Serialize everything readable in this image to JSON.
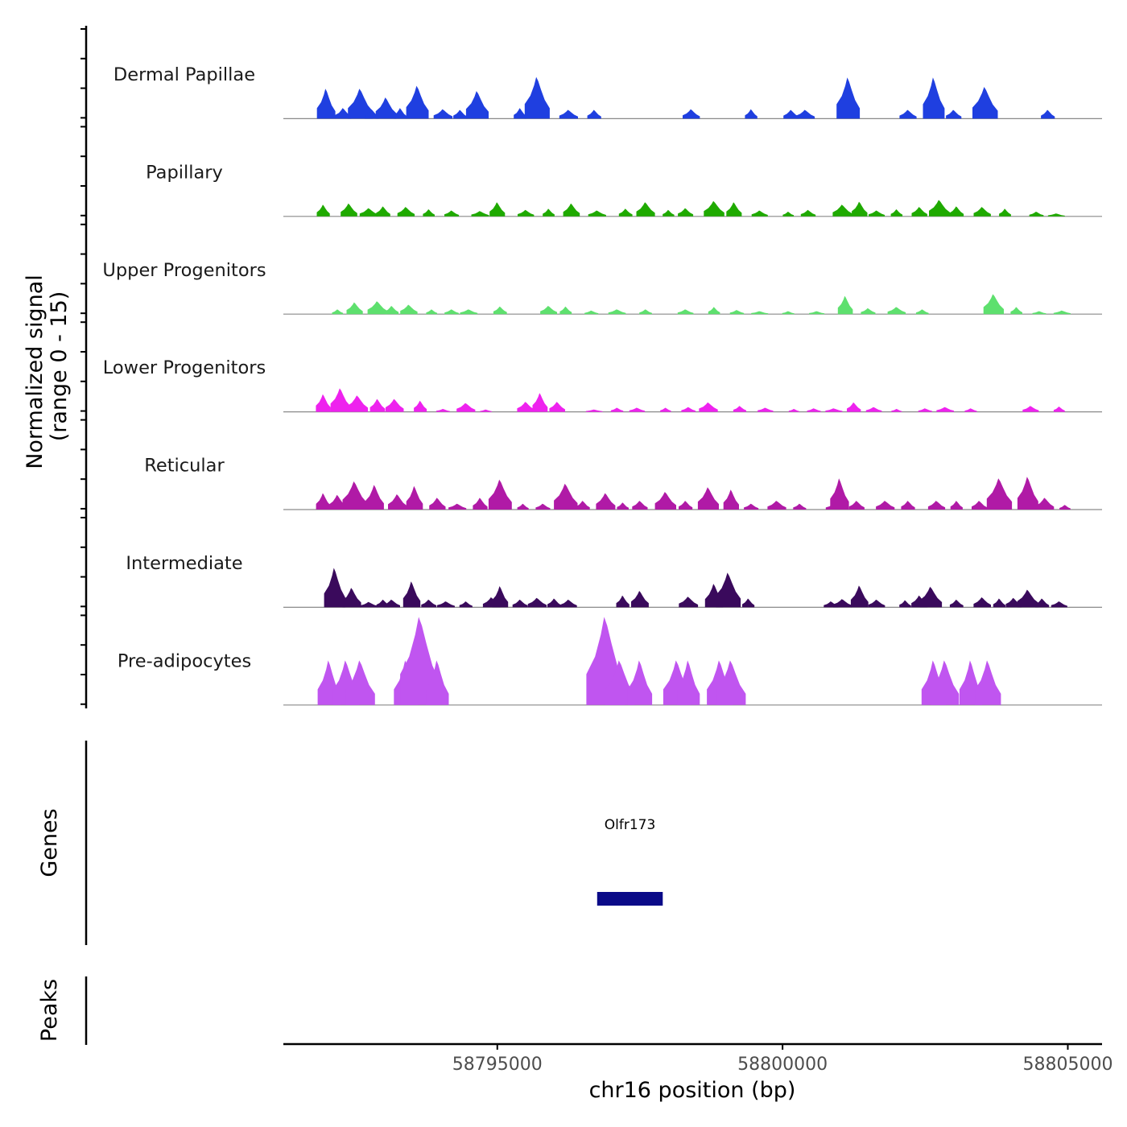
{
  "chart_data": {
    "type": "area",
    "chromosome": "chr16",
    "xlim": [
      58791250,
      58805600
    ],
    "y_range": [
      0,
      15
    ],
    "xlabel": "chr16 position (bp)",
    "ylabel_line1": "Normalized signal",
    "ylabel_line2": "(range 0 - 15)",
    "x_ticks": [
      58795000,
      58800000,
      58805000
    ],
    "x_tick_labels": [
      "58795000",
      "58800000",
      "58805000"
    ],
    "tracks": [
      {
        "name": "Dermal Papillae",
        "color": "#1f3fe0",
        "peaks": [
          [
            58792000,
            5.1
          ],
          [
            58792300,
            1.8
          ],
          [
            58792600,
            5.1
          ],
          [
            58792800,
            1.6
          ],
          [
            58793050,
            3.6
          ],
          [
            58793300,
            1.8
          ],
          [
            58793600,
            5.6
          ],
          [
            58794050,
            1.6
          ],
          [
            58794350,
            1.5
          ],
          [
            58794650,
            4.7
          ],
          [
            58795400,
            1.8
          ],
          [
            58795700,
            7.1
          ],
          [
            58796250,
            1.5
          ],
          [
            58796700,
            1.5
          ],
          [
            58798400,
            1.6
          ],
          [
            58799450,
            1.6
          ],
          [
            58800150,
            1.5
          ],
          [
            58800400,
            1.5
          ],
          [
            58801150,
            7.0
          ],
          [
            58802200,
            1.5
          ],
          [
            58802650,
            7.0
          ],
          [
            58803000,
            1.5
          ],
          [
            58803550,
            5.4
          ],
          [
            58804650,
            1.5
          ]
        ]
      },
      {
        "name": "Papillary",
        "color": "#1faa00",
        "peaks": [
          [
            58791950,
            2.0
          ],
          [
            58792400,
            2.2
          ],
          [
            58792750,
            1.4
          ],
          [
            58793000,
            1.7
          ],
          [
            58793400,
            1.6
          ],
          [
            58793800,
            1.2
          ],
          [
            58794200,
            1.0
          ],
          [
            58794700,
            0.9
          ],
          [
            58795000,
            2.4
          ],
          [
            58795500,
            1.1
          ],
          [
            58795900,
            1.3
          ],
          [
            58796300,
            2.2
          ],
          [
            58796750,
            1.0
          ],
          [
            58797250,
            1.3
          ],
          [
            58797600,
            2.4
          ],
          [
            58798000,
            1.1
          ],
          [
            58798300,
            1.4
          ],
          [
            58798800,
            2.6
          ],
          [
            58799150,
            2.4
          ],
          [
            58799600,
            1.0
          ],
          [
            58800100,
            0.8
          ],
          [
            58800450,
            1.1
          ],
          [
            58801050,
            2.0
          ],
          [
            58801350,
            2.5
          ],
          [
            58801650,
            1.0
          ],
          [
            58802000,
            1.2
          ],
          [
            58802400,
            1.6
          ],
          [
            58802750,
            2.8
          ],
          [
            58803050,
            1.7
          ],
          [
            58803500,
            1.6
          ],
          [
            58803900,
            1.3
          ],
          [
            58804450,
            0.8
          ],
          [
            58804800,
            0.5
          ]
        ]
      },
      {
        "name": "Upper Progenitors",
        "color": "#5ee06e",
        "peaks": [
          [
            58792200,
            0.8
          ],
          [
            58792500,
            2.0
          ],
          [
            58792900,
            2.2
          ],
          [
            58793150,
            1.4
          ],
          [
            58793450,
            1.6
          ],
          [
            58793850,
            0.8
          ],
          [
            58794200,
            0.8
          ],
          [
            58794500,
            0.8
          ],
          [
            58795050,
            1.3
          ],
          [
            58795900,
            1.4
          ],
          [
            58796200,
            1.3
          ],
          [
            58796650,
            0.6
          ],
          [
            58797100,
            0.8
          ],
          [
            58797600,
            0.8
          ],
          [
            58798300,
            0.8
          ],
          [
            58798800,
            1.2
          ],
          [
            58799200,
            0.7
          ],
          [
            58799600,
            0.5
          ],
          [
            58800100,
            0.5
          ],
          [
            58800600,
            0.5
          ],
          [
            58801100,
            3.1
          ],
          [
            58801500,
            1.0
          ],
          [
            58802000,
            1.2
          ],
          [
            58802450,
            0.8
          ],
          [
            58803700,
            3.4
          ],
          [
            58804100,
            1.2
          ],
          [
            58804500,
            0.5
          ],
          [
            58804900,
            0.6
          ]
        ]
      },
      {
        "name": "Lower Progenitors",
        "color": "#ee22ee",
        "peaks": [
          [
            58791950,
            3.0
          ],
          [
            58792250,
            4.0
          ],
          [
            58792550,
            2.8
          ],
          [
            58792900,
            2.2
          ],
          [
            58793200,
            2.2
          ],
          [
            58793650,
            1.9
          ],
          [
            58794050,
            0.5
          ],
          [
            58794450,
            1.5
          ],
          [
            58794800,
            0.4
          ],
          [
            58795500,
            1.7
          ],
          [
            58795750,
            3.2
          ],
          [
            58796050,
            1.7
          ],
          [
            58796700,
            0.4
          ],
          [
            58797100,
            0.7
          ],
          [
            58797450,
            0.7
          ],
          [
            58797950,
            0.7
          ],
          [
            58798350,
            0.8
          ],
          [
            58798700,
            1.6
          ],
          [
            58799250,
            1.0
          ],
          [
            58799700,
            0.7
          ],
          [
            58800200,
            0.5
          ],
          [
            58800550,
            0.6
          ],
          [
            58800900,
            0.6
          ],
          [
            58801250,
            1.6
          ],
          [
            58801600,
            0.8
          ],
          [
            58802000,
            0.5
          ],
          [
            58802500,
            0.6
          ],
          [
            58802850,
            0.8
          ],
          [
            58803300,
            0.6
          ],
          [
            58804350,
            1.0
          ],
          [
            58804850,
            0.9
          ]
        ]
      },
      {
        "name": "Reticular",
        "color": "#b01aa6",
        "peaks": [
          [
            58791950,
            2.8
          ],
          [
            58792200,
            2.5
          ],
          [
            58792500,
            4.8
          ],
          [
            58792850,
            4.2
          ],
          [
            58793250,
            2.6
          ],
          [
            58793550,
            4.0
          ],
          [
            58793950,
            2.0
          ],
          [
            58794300,
            1.0
          ],
          [
            58794700,
            2.0
          ],
          [
            58795050,
            5.1
          ],
          [
            58795450,
            1.0
          ],
          [
            58795800,
            1.0
          ],
          [
            58796200,
            4.4
          ],
          [
            58796500,
            1.5
          ],
          [
            58796900,
            2.8
          ],
          [
            58797200,
            1.2
          ],
          [
            58797500,
            1.5
          ],
          [
            58797950,
            3.0
          ],
          [
            58798300,
            1.5
          ],
          [
            58798700,
            3.8
          ],
          [
            58799100,
            3.4
          ],
          [
            58799450,
            1.0
          ],
          [
            58799900,
            1.5
          ],
          [
            58800300,
            1.0
          ],
          [
            58800900,
            1.0
          ],
          [
            58801000,
            5.3
          ],
          [
            58801300,
            1.5
          ],
          [
            58801800,
            1.5
          ],
          [
            58802200,
            1.5
          ],
          [
            58802700,
            1.5
          ],
          [
            58803050,
            1.5
          ],
          [
            58803450,
            1.5
          ],
          [
            58803800,
            5.3
          ],
          [
            58804300,
            5.6
          ],
          [
            58804600,
            2.0
          ],
          [
            58804950,
            0.8
          ]
        ]
      },
      {
        "name": "Intermediate",
        "color": "#3a0a5c",
        "peaks": [
          [
            58792150,
            6.7
          ],
          [
            58792450,
            3.3
          ],
          [
            58792750,
            0.9
          ],
          [
            58793000,
            1.3
          ],
          [
            58793150,
            1.3
          ],
          [
            58793500,
            4.4
          ],
          [
            58793800,
            1.3
          ],
          [
            58794100,
            1.0
          ],
          [
            58794450,
            1.0
          ],
          [
            58794900,
            1.7
          ],
          [
            58795050,
            3.6
          ],
          [
            58795400,
            1.3
          ],
          [
            58795700,
            1.6
          ],
          [
            58796000,
            1.5
          ],
          [
            58796250,
            1.3
          ],
          [
            58797200,
            2.0
          ],
          [
            58797500,
            2.8
          ],
          [
            58798350,
            1.8
          ],
          [
            58798800,
            4.0
          ],
          [
            58799050,
            5.9
          ],
          [
            58799400,
            1.5
          ],
          [
            58800850,
            1.0
          ],
          [
            58801050,
            1.4
          ],
          [
            58801350,
            3.7
          ],
          [
            58801650,
            1.3
          ],
          [
            58802150,
            1.2
          ],
          [
            58802400,
            2.0
          ],
          [
            58802600,
            3.5
          ],
          [
            58803050,
            1.3
          ],
          [
            58803500,
            1.7
          ],
          [
            58803800,
            1.5
          ],
          [
            58804050,
            1.6
          ],
          [
            58804300,
            3.0
          ],
          [
            58804550,
            1.5
          ],
          [
            58804850,
            1.0
          ]
        ]
      },
      {
        "name": "Pre-adipocytes",
        "color": "#c055f0",
        "peaks": [
          [
            58792050,
            7.6
          ],
          [
            58792350,
            7.6
          ],
          [
            58792600,
            7.6
          ],
          [
            58793400,
            7.6
          ],
          [
            58793650,
            15.0
          ],
          [
            58793950,
            7.6
          ],
          [
            58796900,
            15.0
          ],
          [
            58797150,
            7.6
          ],
          [
            58797500,
            7.6
          ],
          [
            58798150,
            7.6
          ],
          [
            58798350,
            7.6
          ],
          [
            58798900,
            7.6
          ],
          [
            58799100,
            7.6
          ],
          [
            58802650,
            7.6
          ],
          [
            58802850,
            7.6
          ],
          [
            58803300,
            7.6
          ],
          [
            58803600,
            7.6
          ]
        ]
      }
    ],
    "genes_label": "Genes",
    "genes": [
      {
        "name": "Olfr173",
        "start": 58796750,
        "end": 58797900,
        "color": "#0a0a88"
      }
    ],
    "peaks_label": "Peaks"
  }
}
